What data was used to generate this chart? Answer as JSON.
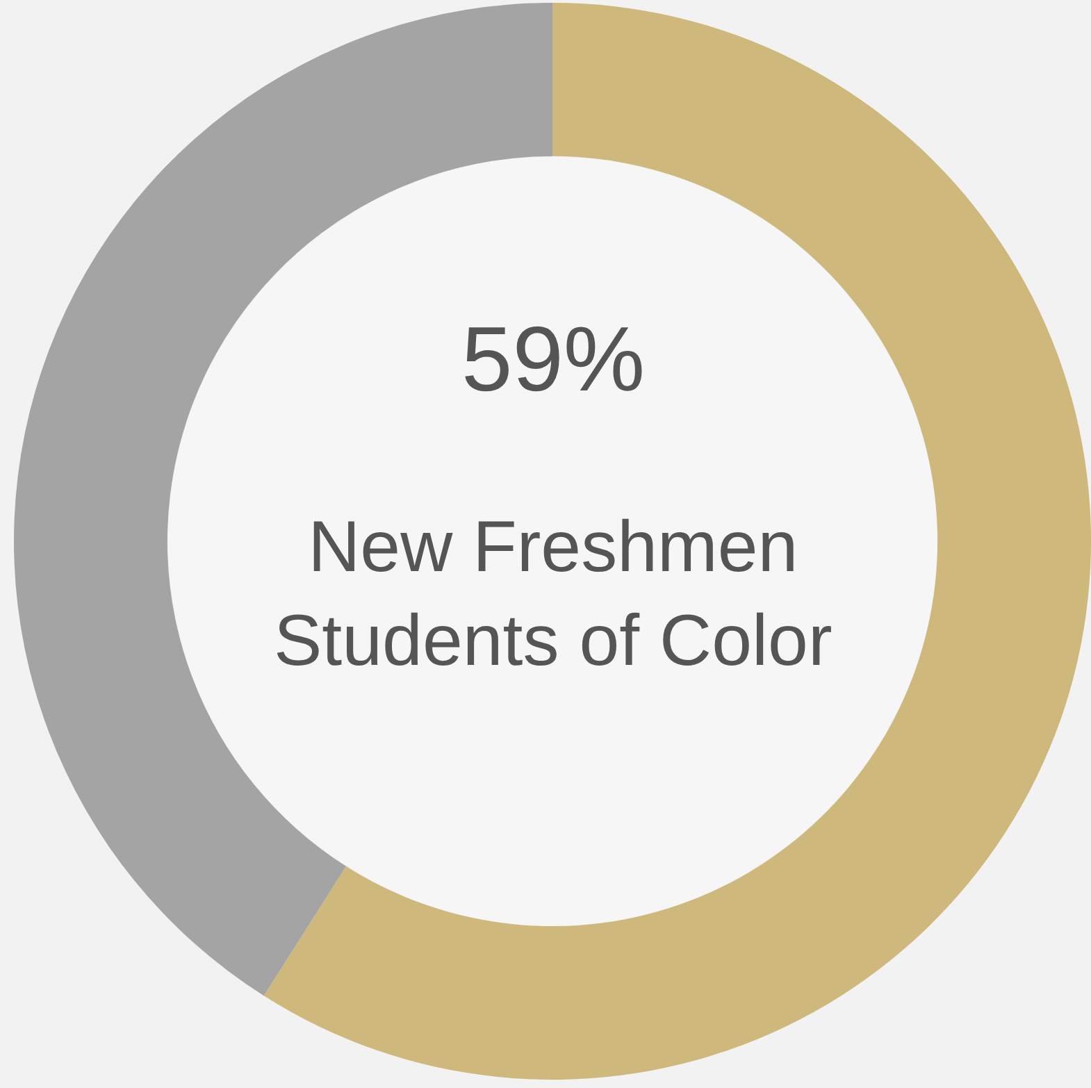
{
  "chart_data": {
    "type": "donut",
    "categories": [
      null,
      null
    ],
    "values": [
      59,
      41
    ],
    "colors": [
      "#cfb87c",
      "#a3a4a3"
    ],
    "annotations": [
      "59%",
      "New Freshmen Students of Color"
    ]
  }
}
